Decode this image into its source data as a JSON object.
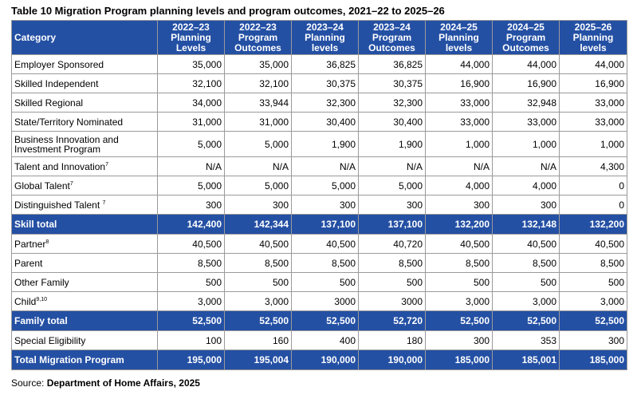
{
  "title": "Table 10 Migration Program planning levels and program outcomes, 2021–22 to 2025–26",
  "header": {
    "category": "Category",
    "columns": [
      {
        "year": "2022–23",
        "kind_1": "Planning",
        "kind_2": "Levels"
      },
      {
        "year": "2022–23",
        "kind_1": "Program",
        "kind_2": "Outcomes"
      },
      {
        "year": "2023–24",
        "kind_1": "Planning",
        "kind_2": "levels"
      },
      {
        "year": "2023–24",
        "kind_1": "Program",
        "kind_2": "Outcomes"
      },
      {
        "year": "2024–25",
        "kind_1": "Planning",
        "kind_2": "levels"
      },
      {
        "year": "2024–25",
        "kind_1": "Program",
        "kind_2": "Outcomes"
      },
      {
        "year": "2025–26",
        "kind_1": "Planning",
        "kind_2": "levels"
      }
    ]
  },
  "rows": [
    {
      "label": "Employer Sponsored",
      "sup": "",
      "values": [
        "35,000",
        "35,000",
        "36,825",
        "36,825",
        "44,000",
        "44,000",
        "44,000"
      ]
    },
    {
      "label": "Skilled Independent",
      "sup": "",
      "values": [
        "32,100",
        "32,100",
        "30,375",
        "30,375",
        "16,900",
        "16,900",
        "16,900"
      ]
    },
    {
      "label": "Skilled Regional",
      "sup": "",
      "values": [
        "34,000",
        "33,944",
        "32,300",
        "32,300",
        "33,000",
        "32,948",
        "33,000"
      ]
    },
    {
      "label": "State/Territory Nominated",
      "sup": "",
      "values": [
        "31,000",
        "31,000",
        "30,400",
        "30,400",
        "33,000",
        "33,000",
        "33,000"
      ]
    },
    {
      "label": "Business Innovation and Investment Program",
      "sup": "",
      "values": [
        "5,000",
        "5,000",
        "1,900",
        "1,900",
        "1,000",
        "1,000",
        "1,000"
      ]
    },
    {
      "label": "Talent and Innovation",
      "sup": "7",
      "values": [
        "N/A",
        "N/A",
        "N/A",
        "N/A",
        "N/A",
        "N/A",
        "4,300"
      ]
    },
    {
      "label": "Global Talent",
      "sup": "7",
      "values": [
        "5,000",
        "5,000",
        "5,000",
        "5,000",
        "4,000",
        "4,000",
        "0"
      ]
    },
    {
      "label": "Distinguished Talent ",
      "sup": "7",
      "values": [
        "300",
        "300",
        "300",
        "300",
        "300",
        "300",
        "0"
      ]
    },
    {
      "label": "Skill total",
      "sup": "",
      "total": true,
      "values": [
        "142,400",
        "142,344",
        "137,100",
        "137,100",
        "132,200",
        "132,148",
        "132,200"
      ]
    },
    {
      "label": "Partner",
      "sup": "8",
      "values": [
        "40,500",
        "40,500",
        "40,500",
        "40,720",
        "40,500",
        "40,500",
        "40,500"
      ]
    },
    {
      "label": "Parent",
      "sup": "",
      "values": [
        "8,500",
        "8,500",
        "8,500",
        "8,500",
        "8,500",
        "8,500",
        "8,500"
      ]
    },
    {
      "label": "Other Family",
      "sup": "",
      "values": [
        "500",
        "500",
        "500",
        "500",
        "500",
        "500",
        "500"
      ]
    },
    {
      "label": "Child",
      "sup": "9,10",
      "values": [
        "3,000",
        "3,000",
        "3000",
        "3000",
        "3,000",
        "3,000",
        "3,000"
      ]
    },
    {
      "label": "Family total",
      "sup": "",
      "total": true,
      "values": [
        "52,500",
        "52,500",
        "52,500",
        "52,720",
        "52,500",
        "52,500",
        "52,500"
      ]
    },
    {
      "label": "Special Eligibility",
      "sup": "",
      "values": [
        "100",
        "160",
        "400",
        "180",
        "300",
        "353",
        "300"
      ]
    },
    {
      "label": "Total Migration Program",
      "sup": "",
      "total": true,
      "values": [
        "195,000",
        "195,004",
        "190,000",
        "190,000",
        "185,000",
        "185,001",
        "185,000"
      ]
    }
  ],
  "source": {
    "prefix": "Source: ",
    "name": "Department of Home Affairs, 2025"
  }
}
